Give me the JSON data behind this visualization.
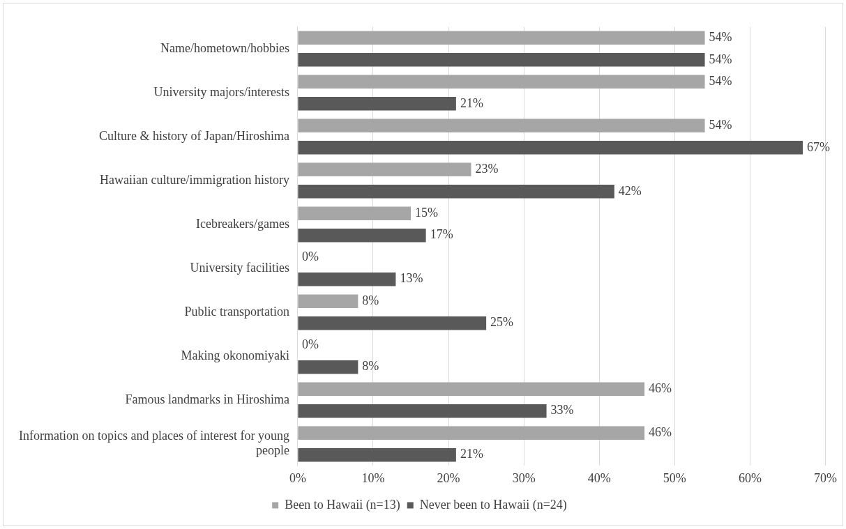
{
  "chart_data": {
    "type": "bar",
    "orientation": "horizontal",
    "categories": [
      "Name/hometown/hobbies",
      "University majors/interests",
      "Culture & history of Japan/Hiroshima",
      "Hawaiian culture/immigration history",
      "Icebreakers/games",
      "University facilities",
      "Public transportation",
      "Making okonomiyaki",
      "Famous landmarks in Hiroshima",
      "Information on topics and places of interest for young people"
    ],
    "series": [
      {
        "name": "Been to Hawaii (n=13)",
        "color": "#a6a6a6",
        "values": [
          54,
          54,
          54,
          23,
          15,
          0,
          8,
          0,
          46,
          46
        ],
        "value_labels": [
          "54%",
          "54%",
          "54%",
          "23%",
          "15%",
          "0%",
          "8%",
          "0%",
          "46%",
          "46%"
        ]
      },
      {
        "name": "Never been to Hawaii (n=24)",
        "color": "#595959",
        "values": [
          54,
          21,
          67,
          42,
          17,
          13,
          25,
          8,
          33,
          21
        ],
        "value_labels": [
          "54%",
          "21%",
          "67%",
          "42%",
          "17%",
          "13%",
          "25%",
          "8%",
          "33%",
          "21%"
        ]
      }
    ],
    "xlim": [
      0,
      70
    ],
    "xticks": [
      {
        "value": 0,
        "label": "0%"
      },
      {
        "value": 10,
        "label": "10%"
      },
      {
        "value": 20,
        "label": "20%"
      },
      {
        "value": 30,
        "label": "30%"
      },
      {
        "value": 40,
        "label": "40%"
      },
      {
        "value": 50,
        "label": "50%"
      },
      {
        "value": 60,
        "label": "60%"
      },
      {
        "value": 70,
        "label": "70%"
      }
    ],
    "grid": "x",
    "legend": "bottom"
  }
}
